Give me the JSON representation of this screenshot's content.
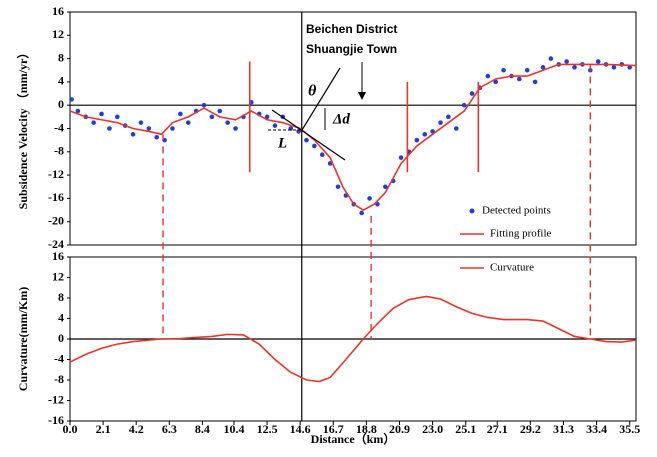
{
  "chart_data": {
    "type": "profile",
    "xlabel": "Distance（km）",
    "xlim": [
      0,
      35.9
    ],
    "xticks": [
      {
        "value": 0,
        "label": "0.0"
      },
      2.1,
      4.2,
      6.3,
      8.4,
      10.4,
      12.5,
      14.6,
      16.7,
      18.8,
      20.9,
      {
        "value": 23,
        "label": "23.0"
      },
      25.1,
      27.1,
      29.2,
      31.3,
      33.4,
      35.5
    ],
    "top": {
      "ylabel": "Subsidence Velocity （mm/yr）",
      "ylim": [
        -24,
        16
      ],
      "yticks": [
        16,
        12,
        8,
        4,
        0,
        -4,
        -8,
        -12,
        -16,
        -20,
        -24
      ],
      "points": {
        "name": "Detected points",
        "color": "#1f3fd6",
        "x": [
          0.1,
          0.5,
          1,
          1.5,
          2,
          2.5,
          3,
          3.5,
          4,
          4.5,
          5,
          5.5,
          6,
          6.5,
          7,
          7.5,
          8,
          8.5,
          9,
          9.5,
          10,
          10.5,
          11,
          11.5,
          12,
          12.5,
          13,
          13.5,
          14,
          14.5,
          15,
          15.5,
          16,
          16.5,
          17,
          17.5,
          18,
          18.5,
          19,
          19.5,
          20,
          20.5,
          21,
          21.5,
          22,
          22.5,
          23,
          23.5,
          24,
          24.5,
          25,
          25.5,
          26,
          26.5,
          27,
          27.5,
          28,
          28.5,
          29,
          29.5,
          30,
          30.5,
          31,
          31.5,
          32,
          32.5,
          33,
          33.5,
          34,
          34.5,
          35,
          35.5
        ],
        "values": [
          1,
          -1,
          -2,
          -3,
          -1.5,
          -4,
          -2,
          -3.5,
          -5,
          -3,
          -4,
          -5.5,
          -6,
          -4,
          -1.5,
          -3,
          -1,
          0,
          -2,
          -1,
          -3,
          -4,
          -2,
          0.5,
          -1.5,
          -2,
          -3.5,
          -2,
          -4,
          -4.5,
          -6,
          -7,
          -8.5,
          -10,
          -14,
          -15.5,
          -17,
          -18.5,
          -16,
          -17,
          -14,
          -13,
          -9,
          -8,
          -6,
          -5,
          -4.5,
          -3,
          -2,
          -4,
          0,
          2,
          3,
          5,
          4,
          6,
          5,
          4.5,
          6,
          4,
          6.5,
          8,
          7,
          7.5,
          6.5,
          7,
          6,
          7.5,
          7,
          6.5,
          7,
          6.5
        ]
      },
      "fit": {
        "name": "Fitting profile",
        "color": "#e8352b",
        "x": [
          0,
          1,
          2,
          3,
          4,
          5,
          5.8,
          6.5,
          7.5,
          8.5,
          9.5,
          10.5,
          11.5,
          12.5,
          13.5,
          14.6,
          15.5,
          16.5,
          17.3,
          18,
          18.6,
          19.3,
          20,
          21,
          22,
          23,
          24,
          25,
          26,
          27,
          28,
          29,
          30,
          31,
          32,
          33,
          34,
          35.9
        ],
        "values": [
          -1,
          -2,
          -2.5,
          -3,
          -4,
          -4.5,
          -5,
          -3,
          -2,
          -0.5,
          -2,
          -2.5,
          -1,
          -2.5,
          -3,
          -4,
          -6,
          -9,
          -14,
          -17,
          -18,
          -17,
          -15,
          -10,
          -7,
          -5,
          -3,
          -1,
          3,
          4.5,
          5,
          5,
          6,
          7,
          7,
          7,
          7,
          6.8
        ]
      },
      "segments": [
        {
          "x": 11.4,
          "y": [
            -11.5,
            7.5
          ]
        },
        {
          "x": 21.4,
          "y": [
            -11.5,
            4
          ]
        },
        {
          "x": 25.9,
          "y": [
            -11.5,
            4
          ]
        }
      ]
    },
    "bottom": {
      "ylabel": "Curvature(mm/Km)",
      "ylim": [
        -16,
        16
      ],
      "yticks": [
        16,
        12,
        8,
        4,
        0,
        -4,
        -8,
        -12,
        -16
      ],
      "curve": {
        "name": "Curvature",
        "color": "#e8352b",
        "x": [
          0,
          1,
          2,
          3,
          4,
          5,
          5.8,
          7,
          8,
          9,
          10,
          11,
          12,
          13,
          14,
          15,
          15.8,
          16.5,
          17.5,
          18.6,
          19.5,
          20.5,
          21.5,
          22.6,
          23.5,
          24.5,
          25.5,
          26.5,
          27.5,
          29,
          30,
          31,
          32,
          33,
          34,
          35,
          35.9
        ],
        "values": [
          -4.5,
          -3,
          -1.8,
          -1,
          -0.5,
          -0.2,
          0,
          0.1,
          0.3,
          0.5,
          0.9,
          0.8,
          -1,
          -4,
          -6.5,
          -8,
          -8.3,
          -7.5,
          -4,
          0,
          3,
          6,
          7.7,
          8.3,
          7.8,
          6.3,
          5,
          4.2,
          3.8,
          3.8,
          3.5,
          2,
          0.5,
          0,
          -0.5,
          -0.6,
          -0.2
        ]
      }
    },
    "links": [
      {
        "x": 5.9,
        "top": -5,
        "bottom": 0
      },
      {
        "x": 19.1,
        "top": -19,
        "bottom": 0
      },
      {
        "x": 33.0,
        "top": 7,
        "bottom": 0
      }
    ],
    "center_x": 14.7,
    "annotations": [
      "Beichen District",
      "Shuangjie Town",
      "θ",
      "Δd",
      "L"
    ]
  }
}
